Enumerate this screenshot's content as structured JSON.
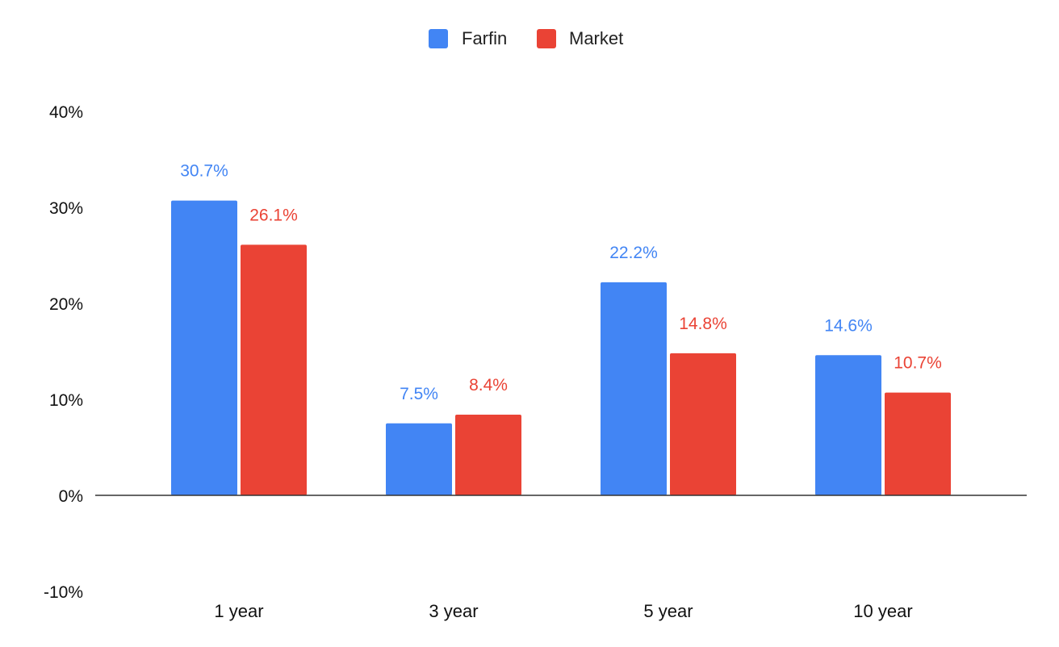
{
  "chart_data": {
    "type": "bar",
    "title": "",
    "xlabel": "",
    "ylabel": "",
    "categories": [
      "1 year",
      "3 year",
      "5 year",
      "10 year"
    ],
    "series": [
      {
        "name": "Farfin",
        "color": "#4285f4",
        "values": [
          30.7,
          7.5,
          22.2,
          14.6
        ],
        "labels": [
          "30.7%",
          "7.5%",
          "22.2%",
          "14.6%"
        ]
      },
      {
        "name": "Market",
        "color": "#ea4335",
        "values": [
          26.1,
          8.4,
          14.8,
          10.7
        ],
        "labels": [
          "26.1%",
          "8.4%",
          "14.8%",
          "10.7%"
        ]
      }
    ],
    "ylim": [
      -10,
      40
    ],
    "yticks": [
      40,
      30,
      20,
      10,
      0,
      -10
    ],
    "ytick_labels": [
      "40%",
      "30%",
      "20%",
      "10%",
      "0%",
      "-10%"
    ],
    "legend_position": "top-center",
    "grid": false,
    "baseline_color": "#333333"
  }
}
